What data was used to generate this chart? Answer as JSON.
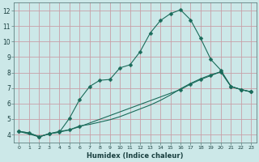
{
  "title": "",
  "xlabel": "Humidex (Indice chaleur)",
  "bg_color": "#cce8e8",
  "grid_color": "#c8a0a8",
  "line_color": "#1a6b5a",
  "xlim": [
    -0.5,
    23.5
  ],
  "ylim": [
    3.5,
    12.5
  ],
  "xticks": [
    0,
    1,
    2,
    3,
    4,
    5,
    6,
    7,
    8,
    9,
    10,
    11,
    12,
    13,
    14,
    15,
    16,
    17,
    18,
    19,
    20,
    21,
    22,
    23
  ],
  "yticks": [
    4,
    5,
    6,
    7,
    8,
    9,
    10,
    11,
    12
  ],
  "series1_x": [
    0,
    1,
    2,
    3,
    4,
    5,
    6,
    7,
    8,
    9,
    10,
    11,
    12,
    13,
    14,
    15,
    16,
    17,
    18,
    19,
    20,
    21,
    22,
    23
  ],
  "series1_y": [
    4.2,
    4.1,
    3.85,
    4.05,
    4.15,
    5.05,
    6.25,
    7.1,
    7.5,
    7.55,
    8.3,
    8.5,
    9.35,
    10.55,
    11.35,
    11.8,
    12.05,
    11.4,
    10.2,
    8.85,
    8.15,
    7.1,
    6.9,
    6.75
  ],
  "series2_x": [
    0,
    2,
    3,
    4,
    5,
    6,
    16,
    17,
    18,
    19,
    20,
    21,
    22,
    23
  ],
  "series2_y": [
    4.2,
    3.85,
    4.05,
    4.2,
    4.3,
    4.5,
    6.9,
    7.25,
    7.55,
    7.8,
    8.05,
    7.1,
    6.9,
    6.75
  ],
  "series3_x": [
    0,
    1,
    2,
    3,
    4,
    5,
    6,
    7,
    8,
    9,
    10,
    11,
    12,
    13,
    14,
    15,
    16,
    17,
    18,
    19,
    20,
    21,
    22,
    23
  ],
  "series3_y": [
    4.2,
    4.1,
    3.85,
    4.05,
    4.15,
    4.3,
    4.55,
    4.65,
    4.8,
    4.95,
    5.15,
    5.4,
    5.65,
    5.9,
    6.2,
    6.55,
    6.95,
    7.3,
    7.6,
    7.85,
    8.05,
    7.1,
    6.9,
    6.75
  ]
}
